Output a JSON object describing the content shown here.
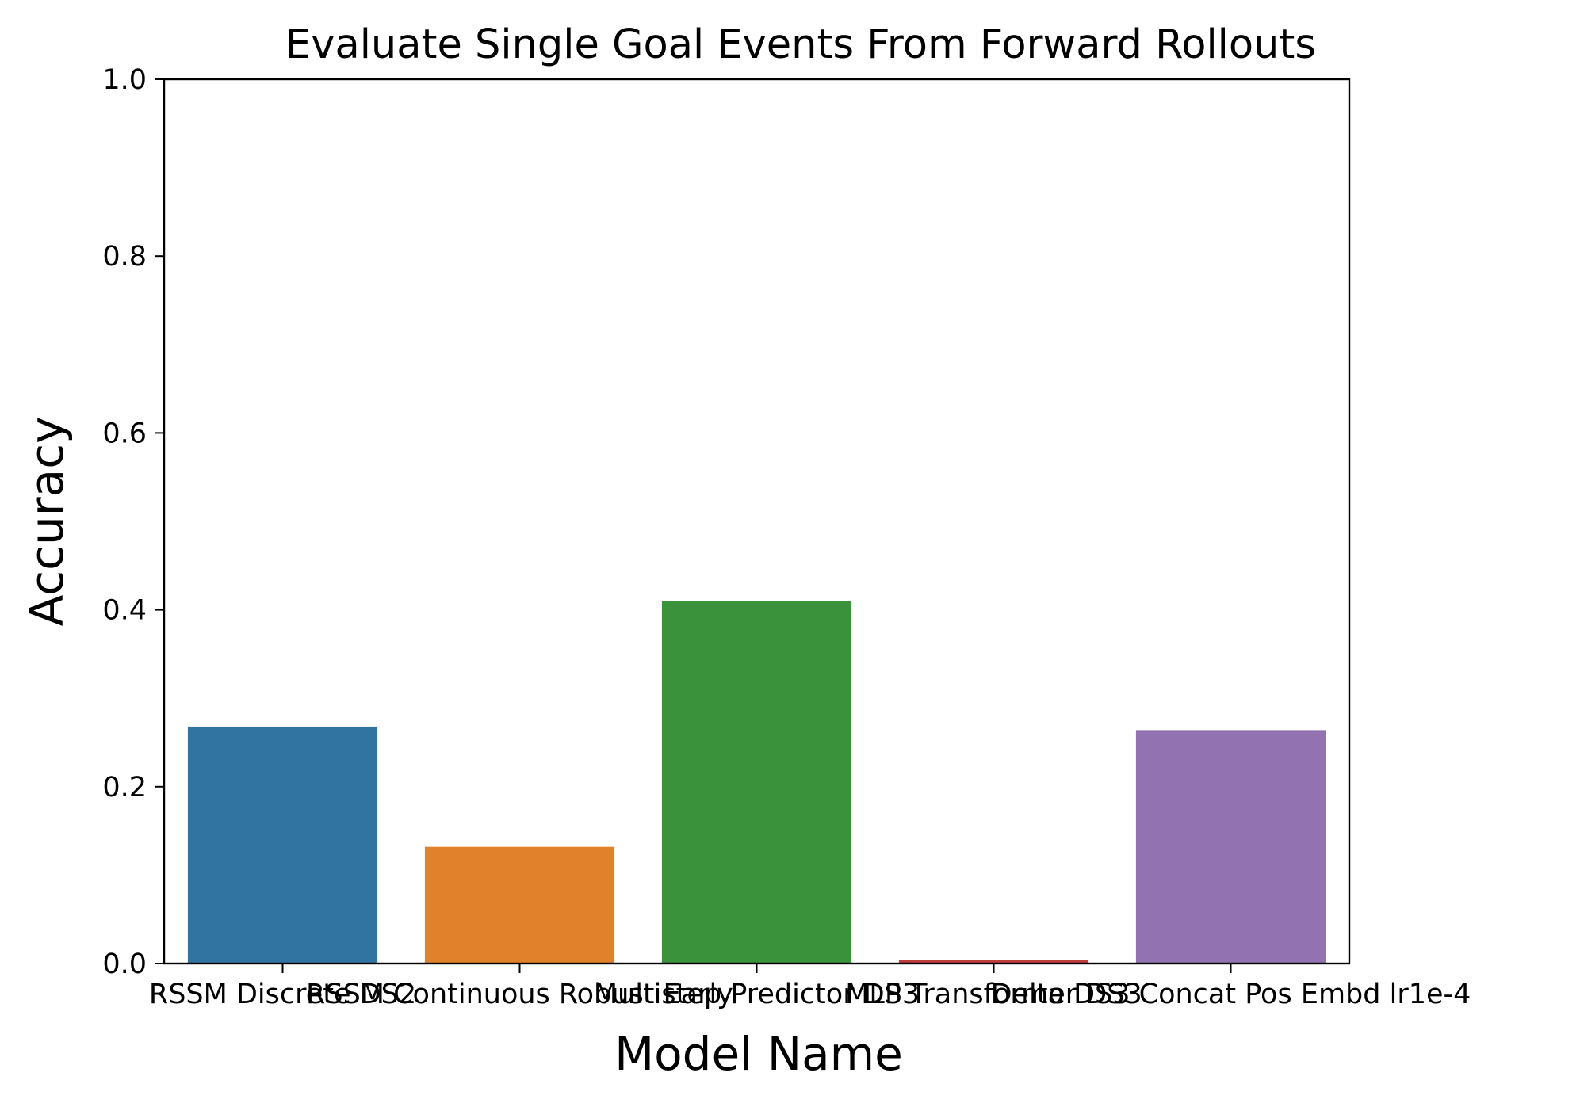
{
  "chart_data": {
    "type": "bar",
    "title": "Evaluate Single Goal Events From Forward Rollouts",
    "xlabel": "Model Name",
    "ylabel": "Accuracy",
    "ylim": [
      0,
      1
    ],
    "y_ticks": [
      "0.0",
      "0.2",
      "0.4",
      "0.6",
      "0.8",
      "1.0"
    ],
    "grid": false,
    "categories": [
      "RSSM Discrete DS2",
      "RSSM Continuous Robust Early",
      "Multistep Predictor DS3",
      "MLP Transformer DS3",
      "Delta DS3 Concat Pos Embd lr1e-4"
    ],
    "values": [
      0.268,
      0.132,
      0.41,
      0.004,
      0.264
    ],
    "colors": [
      "#3274a1",
      "#e1812c",
      "#3a923a",
      "#c03d3e",
      "#9372b2"
    ]
  }
}
